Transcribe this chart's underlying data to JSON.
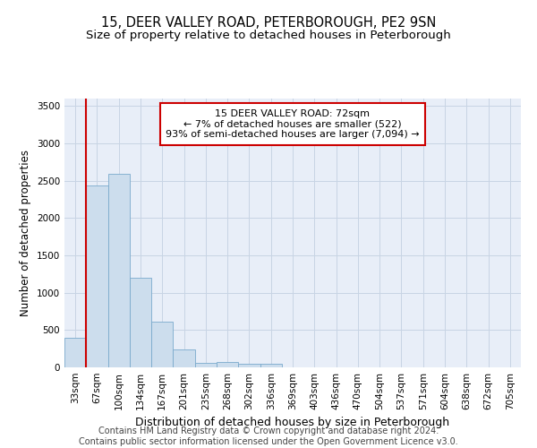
{
  "title": "15, DEER VALLEY ROAD, PETERBOROUGH, PE2 9SN",
  "subtitle": "Size of property relative to detached houses in Peterborough",
  "xlabel": "Distribution of detached houses by size in Peterborough",
  "ylabel": "Number of detached properties",
  "footer_line1": "Contains HM Land Registry data © Crown copyright and database right 2024.",
  "footer_line2": "Contains public sector information licensed under the Open Government Licence v3.0.",
  "annotation_title": "15 DEER VALLEY ROAD: 72sqm",
  "annotation_line1": "← 7% of detached houses are smaller (522)",
  "annotation_line2": "93% of semi-detached houses are larger (7,094) →",
  "bar_labels": [
    "33sqm",
    "67sqm",
    "100sqm",
    "134sqm",
    "167sqm",
    "201sqm",
    "235sqm",
    "268sqm",
    "302sqm",
    "336sqm",
    "369sqm",
    "403sqm",
    "436sqm",
    "470sqm",
    "504sqm",
    "537sqm",
    "571sqm",
    "604sqm",
    "638sqm",
    "672sqm",
    "705sqm"
  ],
  "bar_values": [
    395,
    2440,
    2590,
    1195,
    615,
    235,
    58,
    68,
    52,
    48,
    0,
    0,
    0,
    0,
    0,
    0,
    0,
    0,
    0,
    0,
    0
  ],
  "bar_color": "#ccdded",
  "bar_edge_color": "#7aaacc",
  "vline_color": "#cc0000",
  "vline_x": 0.5,
  "ylim": [
    0,
    3600
  ],
  "yticks": [
    0,
    500,
    1000,
    1500,
    2000,
    2500,
    3000,
    3500
  ],
  "bg_color": "#e8eef8",
  "grid_color": "#c8d4e4",
  "annotation_box_facecolor": "#ffffff",
  "annotation_box_edgecolor": "#cc0000",
  "title_fontsize": 10.5,
  "subtitle_fontsize": 9.5,
  "xlabel_fontsize": 9,
  "ylabel_fontsize": 8.5,
  "tick_fontsize": 7.5,
  "annotation_fontsize": 8,
  "footer_fontsize": 7
}
